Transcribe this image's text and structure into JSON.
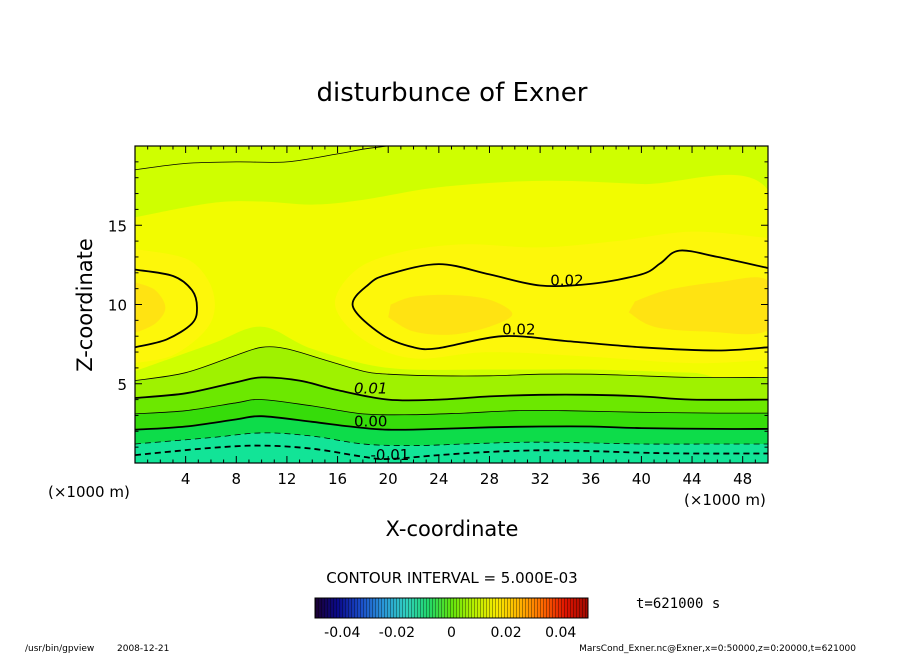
{
  "chart_data": {
    "type": "contour",
    "title": "disturbunce of Exner",
    "xlabel": "X-coordinate",
    "ylabel": "Z-coordinate",
    "x_unit_label": "(×1000 m)",
    "y_unit_label": "(×1000 m)",
    "xlim": [
      0,
      50
    ],
    "ylim": [
      0,
      20
    ],
    "x_ticks": [
      4,
      8,
      12,
      16,
      20,
      24,
      28,
      32,
      36,
      40,
      44,
      48
    ],
    "y_ticks": [
      5,
      10,
      15
    ],
    "contour_labels": [
      {
        "text": "0.02",
        "x": 32.8,
        "y": 11.2
      },
      {
        "text": "0.02",
        "x": 29.0,
        "y": 8.1
      },
      {
        "text": "0.01",
        "x": 17.3,
        "y": 4.4
      },
      {
        "text": "0.00",
        "x": 17.3,
        "y": 2.3
      },
      {
        "text": "-0.01",
        "x": 18.6,
        "y": 0.2
      }
    ],
    "contour_levels": [
      {
        "level": -0.01,
        "style": "dashed",
        "weight": "bold",
        "points": [
          [
            0,
            0.5
          ],
          [
            6,
            0.95
          ],
          [
            10,
            1.1
          ],
          [
            14,
            0.9
          ],
          [
            18,
            0.4
          ],
          [
            20,
            0.25
          ],
          [
            24,
            0.5
          ],
          [
            28,
            0.7
          ],
          [
            32,
            0.8
          ],
          [
            36,
            0.75
          ],
          [
            40,
            0.65
          ],
          [
            44,
            0.6
          ],
          [
            50,
            0.6
          ]
        ]
      },
      {
        "level": -0.005,
        "style": "dashed",
        "weight": "thin",
        "points": [
          [
            0,
            1.2
          ],
          [
            6,
            1.6
          ],
          [
            10,
            1.9
          ],
          [
            14,
            1.7
          ],
          [
            18,
            1.2
          ],
          [
            22,
            1.1
          ],
          [
            26,
            1.2
          ],
          [
            30,
            1.3
          ],
          [
            34,
            1.3
          ],
          [
            40,
            1.2
          ],
          [
            46,
            1.2
          ],
          [
            50,
            1.2
          ]
        ]
      },
      {
        "level": 0.0,
        "style": "solid",
        "weight": "bold",
        "points": [
          [
            0,
            2.1
          ],
          [
            4,
            2.3
          ],
          [
            8,
            2.75
          ],
          [
            10,
            2.95
          ],
          [
            14,
            2.6
          ],
          [
            17,
            2.3
          ],
          [
            20,
            2.1
          ],
          [
            24,
            2.15
          ],
          [
            28,
            2.25
          ],
          [
            32,
            2.3
          ],
          [
            36,
            2.3
          ],
          [
            40,
            2.2
          ],
          [
            46,
            2.15
          ],
          [
            50,
            2.15
          ]
        ]
      },
      {
        "level": 0.005,
        "style": "solid",
        "weight": "thin",
        "points": [
          [
            0,
            3.1
          ],
          [
            4,
            3.3
          ],
          [
            8,
            3.8
          ],
          [
            10,
            4.0
          ],
          [
            14,
            3.6
          ],
          [
            18,
            3.1
          ],
          [
            22,
            3.05
          ],
          [
            26,
            3.15
          ],
          [
            30,
            3.3
          ],
          [
            34,
            3.3
          ],
          [
            40,
            3.2
          ],
          [
            46,
            3.15
          ],
          [
            50,
            3.15
          ]
        ]
      },
      {
        "level": 0.01,
        "style": "solid",
        "weight": "bold",
        "points": [
          [
            0,
            4.1
          ],
          [
            4,
            4.4
          ],
          [
            8,
            5.1
          ],
          [
            10,
            5.4
          ],
          [
            13,
            5.2
          ],
          [
            16,
            4.6
          ],
          [
            20,
            4.0
          ],
          [
            24,
            4.0
          ],
          [
            28,
            4.2
          ],
          [
            32,
            4.3
          ],
          [
            36,
            4.3
          ],
          [
            40,
            4.2
          ],
          [
            44,
            4.0
          ],
          [
            50,
            4.0
          ]
        ]
      },
      {
        "level": 0.015,
        "style": "solid",
        "weight": "thin",
        "points": [
          [
            0,
            5.2
          ],
          [
            4,
            5.7
          ],
          [
            8,
            6.8
          ],
          [
            10,
            7.3
          ],
          [
            12,
            7.2
          ],
          [
            15,
            6.5
          ],
          [
            18,
            5.8
          ],
          [
            20,
            5.6
          ],
          [
            24,
            5.5
          ],
          [
            28,
            5.5
          ],
          [
            32,
            5.6
          ],
          [
            36,
            5.6
          ],
          [
            40,
            5.5
          ],
          [
            44,
            5.4
          ],
          [
            50,
            5.4
          ]
        ]
      },
      {
        "level": 0.02,
        "style": "solid",
        "weight": "bold",
        "points": [
          [
            0,
            7.3
          ],
          [
            2.5,
            7.8
          ],
          [
            4.5,
            8.8
          ],
          [
            4.9,
            9.8
          ],
          [
            4.5,
            10.9
          ],
          [
            3,
            11.8
          ],
          [
            0,
            12.2
          ]
        ]
      },
      {
        "level": 0.02,
        "style": "solid",
        "weight": "bold",
        "points": [
          [
            50,
            7.3
          ],
          [
            46,
            7.1
          ],
          [
            40,
            7.3
          ],
          [
            34,
            7.7
          ],
          [
            29,
            8.0
          ],
          [
            24,
            7.25
          ],
          [
            22,
            7.3
          ],
          [
            19.5,
            8.1
          ],
          [
            17.2,
            9.9
          ],
          [
            18.5,
            11.3
          ],
          [
            20,
            11.9
          ],
          [
            24,
            12.55
          ],
          [
            28,
            11.9
          ],
          [
            32,
            11.2
          ],
          [
            36,
            11.3
          ],
          [
            40,
            11.9
          ],
          [
            41.5,
            12.6
          ],
          [
            43,
            13.4
          ],
          [
            46,
            13.0
          ],
          [
            50,
            12.3
          ]
        ]
      },
      {
        "level": 0.015,
        "style": "solid",
        "weight": "thin",
        "points": [
          [
            0,
            18.5
          ],
          [
            4,
            18.9
          ],
          [
            8,
            19.0
          ],
          [
            12,
            19.0
          ],
          [
            16,
            19.5
          ],
          [
            18,
            19.8
          ],
          [
            20,
            20.0
          ]
        ]
      }
    ],
    "fill_regions": [
      {
        "name": "base-yellow-green",
        "color": "#cfff00"
      },
      {
        "name": "band-light-yellow",
        "color": "#f2fc00"
      },
      {
        "name": "band-yellow",
        "color": "#fdf70a"
      },
      {
        "name": "core-orange-yellow",
        "color": "#ffe312"
      },
      {
        "name": "band-green-1",
        "color": "#9ff200"
      },
      {
        "name": "band-green-2",
        "color": "#6ce800"
      },
      {
        "name": "band-green-3",
        "color": "#36dc0a"
      },
      {
        "name": "band-green-4",
        "color": "#0ddc4a"
      },
      {
        "name": "band-teal",
        "color": "#12e497"
      }
    ]
  },
  "contour_interval_label": "CONTOUR INTERVAL = 5.000E-03",
  "time_label": "t=621000 s",
  "colorbar": {
    "tick_labels": [
      "-0.04",
      "-0.02",
      "0",
      "0.02",
      "0.04"
    ],
    "stops": [
      "#1b0030",
      "#0a0a8a",
      "#1a4cc8",
      "#2a96d8",
      "#30d0c0",
      "#22d86a",
      "#62e40e",
      "#b8f000",
      "#f8e800",
      "#ffb400",
      "#ff6a00",
      "#e01400",
      "#a00a00"
    ]
  },
  "footer": {
    "left": "/usr/bin/gpview",
    "date": "2008-12-21",
    "right": "MarsCond_Exner.nc@Exner,x=0:50000,z=0:20000,t=621000"
  }
}
